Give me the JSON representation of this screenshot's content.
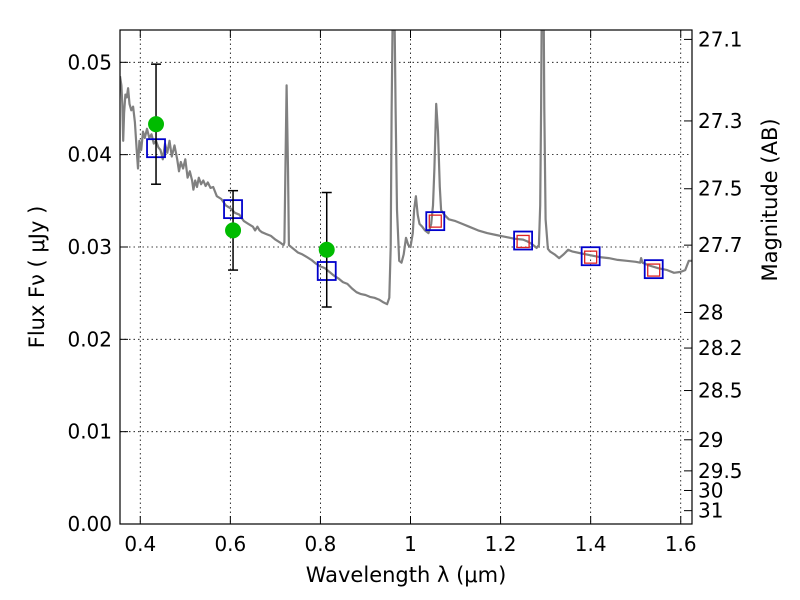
{
  "chart_data": {
    "type": "scatter",
    "xlabel": "Wavelength  λ (μm)",
    "ylabel": "Flux  Fν  ( μJy )",
    "ylabel_right": "Magnitude (AB)",
    "xlim": [
      0.355,
      1.625
    ],
    "ylim": [
      0.0,
      0.0535
    ],
    "grid": true,
    "x_ticks": [
      {
        "v": 0.4,
        "label": "0.4"
      },
      {
        "v": 0.6,
        "label": "0.6"
      },
      {
        "v": 0.8,
        "label": "0.8"
      },
      {
        "v": 1.0,
        "label": "1"
      },
      {
        "v": 1.2,
        "label": "1.2"
      },
      {
        "v": 1.4,
        "label": "1.4"
      },
      {
        "v": 1.6,
        "label": "1.6"
      }
    ],
    "y_ticks": [
      {
        "v": 0.0,
        "label": "0.00"
      },
      {
        "v": 0.01,
        "label": "0.01"
      },
      {
        "v": 0.02,
        "label": "0.02"
      },
      {
        "v": 0.03,
        "label": "0.03"
      },
      {
        "v": 0.04,
        "label": "0.04"
      },
      {
        "v": 0.05,
        "label": "0.05"
      }
    ],
    "right_ticks": [
      {
        "v": 27.1,
        "label": "27.1"
      },
      {
        "v": 27.3,
        "label": "27.3"
      },
      {
        "v": 27.5,
        "label": "27.5"
      },
      {
        "v": 27.7,
        "label": "27.7"
      },
      {
        "v": 28.0,
        "label": "28"
      },
      {
        "v": 28.2,
        "label": "28.2"
      },
      {
        "v": 28.5,
        "label": "28.5"
      },
      {
        "v": 29.0,
        "label": "29"
      },
      {
        "v": 29.5,
        "label": "29.5"
      },
      {
        "v": 30.0,
        "label": "30"
      },
      {
        "v": 31.0,
        "label": "31"
      }
    ],
    "model_sed": [
      [
        0.355,
        0.0485
      ],
      [
        0.358,
        0.0475
      ],
      [
        0.36,
        0.0455
      ],
      [
        0.362,
        0.0415
      ],
      [
        0.364,
        0.0445
      ],
      [
        0.367,
        0.0465
      ],
      [
        0.37,
        0.0462
      ],
      [
        0.373,
        0.0472
      ],
      [
        0.376,
        0.0455
      ],
      [
        0.38,
        0.0448
      ],
      [
        0.384,
        0.0452
      ],
      [
        0.388,
        0.0435
      ],
      [
        0.392,
        0.0405
      ],
      [
        0.395,
        0.0385
      ],
      [
        0.398,
        0.0415
      ],
      [
        0.402,
        0.0405
      ],
      [
        0.406,
        0.0425
      ],
      [
        0.41,
        0.0418
      ],
      [
        0.415,
        0.0428
      ],
      [
        0.42,
        0.0418
      ],
      [
        0.425,
        0.0422
      ],
      [
        0.43,
        0.0412
      ],
      [
        0.435,
        0.0415
      ],
      [
        0.44,
        0.0408
      ],
      [
        0.445,
        0.0405
      ],
      [
        0.45,
        0.0395
      ],
      [
        0.455,
        0.0412
      ],
      [
        0.46,
        0.0402
      ],
      [
        0.465,
        0.0415
      ],
      [
        0.47,
        0.0398
      ],
      [
        0.476,
        0.041
      ],
      [
        0.482,
        0.0395
      ],
      [
        0.486,
        0.0382
      ],
      [
        0.49,
        0.0392
      ],
      [
        0.495,
        0.0385
      ],
      [
        0.5,
        0.0395
      ],
      [
        0.505,
        0.0375
      ],
      [
        0.51,
        0.0382
      ],
      [
        0.515,
        0.0372
      ],
      [
        0.518,
        0.0362
      ],
      [
        0.522,
        0.0372
      ],
      [
        0.526,
        0.0365
      ],
      [
        0.53,
        0.0375
      ],
      [
        0.535,
        0.0368
      ],
      [
        0.54,
        0.0372
      ],
      [
        0.545,
        0.0366
      ],
      [
        0.55,
        0.037
      ],
      [
        0.556,
        0.0364
      ],
      [
        0.562,
        0.0365
      ],
      [
        0.57,
        0.0355
      ],
      [
        0.58,
        0.0352
      ],
      [
        0.59,
        0.0345
      ],
      [
        0.6,
        0.0342
      ],
      [
        0.61,
        0.0337
      ],
      [
        0.62,
        0.0335
      ],
      [
        0.63,
        0.0328
      ],
      [
        0.64,
        0.0325
      ],
      [
        0.65,
        0.0322
      ],
      [
        0.655,
        0.0318
      ],
      [
        0.66,
        0.0322
      ],
      [
        0.665,
        0.0318
      ],
      [
        0.67,
        0.0316
      ],
      [
        0.68,
        0.0314
      ],
      [
        0.69,
        0.0312
      ],
      [
        0.7,
        0.0308
      ],
      [
        0.71,
        0.0305
      ],
      [
        0.718,
        0.0302
      ],
      [
        0.72,
        0.0305
      ],
      [
        0.722,
        0.0375
      ],
      [
        0.725,
        0.0475
      ],
      [
        0.728,
        0.0385
      ],
      [
        0.73,
        0.0302
      ],
      [
        0.74,
        0.0298
      ],
      [
        0.75,
        0.0294
      ],
      [
        0.76,
        0.0292
      ],
      [
        0.77,
        0.0289
      ],
      [
        0.78,
        0.0286
      ],
      [
        0.79,
        0.0282
      ],
      [
        0.8,
        0.0279
      ],
      [
        0.81,
        0.0277
      ],
      [
        0.82,
        0.0273
      ],
      [
        0.83,
        0.0269
      ],
      [
        0.84,
        0.0266
      ],
      [
        0.85,
        0.0262
      ],
      [
        0.86,
        0.026
      ],
      [
        0.87,
        0.0255
      ],
      [
        0.88,
        0.0251
      ],
      [
        0.89,
        0.0249
      ],
      [
        0.9,
        0.0248
      ],
      [
        0.91,
        0.0246
      ],
      [
        0.92,
        0.0245
      ],
      [
        0.93,
        0.0243
      ],
      [
        0.94,
        0.024
      ],
      [
        0.948,
        0.0238
      ],
      [
        0.953,
        0.0245
      ],
      [
        0.956,
        0.03
      ],
      [
        0.958,
        0.0445
      ],
      [
        0.96,
        0.0535
      ],
      [
        0.965,
        0.0535
      ],
      [
        0.967,
        0.045
      ],
      [
        0.97,
        0.034
      ],
      [
        0.975,
        0.0285
      ],
      [
        0.98,
        0.0283
      ],
      [
        0.985,
        0.0292
      ],
      [
        0.99,
        0.031
      ],
      [
        0.995,
        0.0302
      ],
      [
        1.0,
        0.03
      ],
      [
        1.005,
        0.0315
      ],
      [
        1.008,
        0.034
      ],
      [
        1.012,
        0.0355
      ],
      [
        1.016,
        0.0335
      ],
      [
        1.02,
        0.0325
      ],
      [
        1.026,
        0.0322
      ],
      [
        1.032,
        0.0318
      ],
      [
        1.04,
        0.0315
      ],
      [
        1.046,
        0.0325
      ],
      [
        1.05,
        0.0345
      ],
      [
        1.053,
        0.0385
      ],
      [
        1.057,
        0.0455
      ],
      [
        1.061,
        0.0425
      ],
      [
        1.065,
        0.0365
      ],
      [
        1.068,
        0.034
      ],
      [
        1.075,
        0.0335
      ],
      [
        1.085,
        0.033
      ],
      [
        1.1,
        0.0328
      ],
      [
        1.115,
        0.0325
      ],
      [
        1.13,
        0.0322
      ],
      [
        1.15,
        0.0318
      ],
      [
        1.17,
        0.0315
      ],
      [
        1.19,
        0.0313
      ],
      [
        1.21,
        0.0311
      ],
      [
        1.23,
        0.0309
      ],
      [
        1.25,
        0.0308
      ],
      [
        1.26,
        0.0306
      ],
      [
        1.27,
        0.0303
      ],
      [
        1.28,
        0.0299
      ],
      [
        1.285,
        0.0302
      ],
      [
        1.288,
        0.0345
      ],
      [
        1.29,
        0.045
      ],
      [
        1.291,
        0.0535
      ],
      [
        1.296,
        0.0535
      ],
      [
        1.297,
        0.045
      ],
      [
        1.3,
        0.033
      ],
      [
        1.305,
        0.0298
      ],
      [
        1.31,
        0.0295
      ],
      [
        1.32,
        0.0292
      ],
      [
        1.33,
        0.0288
      ],
      [
        1.34,
        0.0292
      ],
      [
        1.35,
        0.0297
      ],
      [
        1.36,
        0.0295
      ],
      [
        1.38,
        0.0293
      ],
      [
        1.4,
        0.0291
      ],
      [
        1.42,
        0.0289
      ],
      [
        1.44,
        0.0288
      ],
      [
        1.46,
        0.0286
      ],
      [
        1.48,
        0.0285
      ],
      [
        1.5,
        0.0284
      ],
      [
        1.51,
        0.0283
      ],
      [
        1.512,
        0.0288
      ],
      [
        1.515,
        0.0283
      ],
      [
        1.53,
        0.028
      ],
      [
        1.55,
        0.0277
      ],
      [
        1.57,
        0.0275
      ],
      [
        1.585,
        0.0272
      ],
      [
        1.6,
        0.0273
      ],
      [
        1.61,
        0.0275
      ],
      [
        1.618,
        0.0285
      ],
      [
        1.625,
        0.0285
      ]
    ],
    "observed": [
      {
        "x": 0.435,
        "y": 0.0433,
        "yerr": 0.0065
      },
      {
        "x": 0.606,
        "y": 0.0318,
        "yerr": 0.0043
      },
      {
        "x": 0.814,
        "y": 0.0297,
        "yerr": 0.0062
      }
    ],
    "model_bands": [
      {
        "x": 0.435,
        "y": 0.0407
      },
      {
        "x": 0.606,
        "y": 0.0341
      },
      {
        "x": 0.814,
        "y": 0.0274
      },
      {
        "x": 1.055,
        "y": 0.0328
      },
      {
        "x": 1.25,
        "y": 0.0307
      },
      {
        "x": 1.4,
        "y": 0.029
      },
      {
        "x": 1.54,
        "y": 0.0276
      }
    ],
    "nir_points": [
      {
        "x": 1.055,
        "y": 0.0328
      },
      {
        "x": 1.25,
        "y": 0.0306
      },
      {
        "x": 1.4,
        "y": 0.0289
      },
      {
        "x": 1.54,
        "y": 0.0275
      }
    ],
    "colors": {
      "sed": "#808080",
      "observed": "#00bb00",
      "errorbar": "#000000",
      "band_square": "#0000cc",
      "nir_square": "#dd2222"
    }
  }
}
